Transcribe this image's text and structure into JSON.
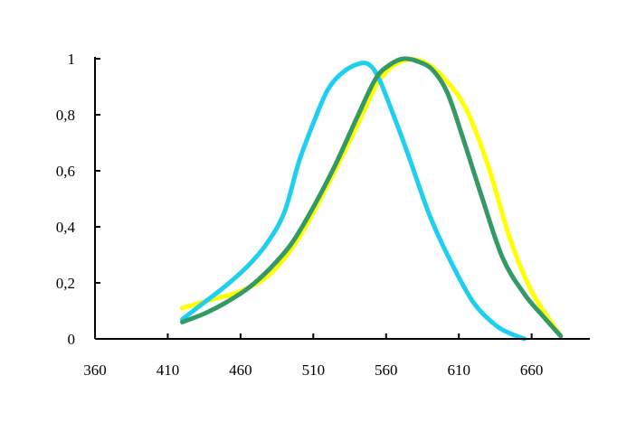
{
  "chart_data": {
    "type": "line",
    "title": "",
    "xlabel": "",
    "ylabel": "",
    "xlim": [
      360,
      700
    ],
    "ylim": [
      0,
      1
    ],
    "grid": false,
    "legend": "none",
    "x_ticks": [
      360,
      410,
      460,
      510,
      560,
      610,
      660
    ],
    "x_tick_labels": [
      "360",
      "410",
      "460",
      "510",
      "560",
      "610",
      "660"
    ],
    "y_ticks": [
      0,
      0.2,
      0.4,
      0.6,
      0.8,
      1
    ],
    "y_tick_labels": [
      "0",
      "0,2",
      "0,4",
      "0,6",
      "0,8",
      "1"
    ],
    "series": [
      {
        "color": "#ffff00",
        "x": [
          420,
          440,
          460,
          480,
          500,
          520,
          540,
          555,
          570,
          585,
          600,
          615,
          630,
          645,
          660,
          680
        ],
        "y": [
          0.11,
          0.14,
          0.17,
          0.23,
          0.36,
          0.55,
          0.76,
          0.92,
          0.99,
          0.99,
          0.93,
          0.82,
          0.62,
          0.36,
          0.17,
          0.01
        ]
      },
      {
        "color": "#1fcfef",
        "x": [
          420,
          435,
          450,
          465,
          478,
          490,
          500,
          510,
          520,
          530,
          540,
          548,
          555,
          565,
          575,
          590,
          605,
          620,
          635,
          645,
          655
        ],
        "y": [
          0.07,
          0.13,
          0.19,
          0.26,
          0.34,
          0.45,
          0.63,
          0.77,
          0.89,
          0.95,
          0.98,
          0.98,
          0.93,
          0.8,
          0.66,
          0.44,
          0.27,
          0.13,
          0.05,
          0.02,
          0.0
        ]
      },
      {
        "color": "#339966",
        "x": [
          420,
          435,
          450,
          465,
          480,
          495,
          510,
          525,
          540,
          553,
          563,
          572,
          582,
          592,
          602,
          612,
          625,
          640,
          655,
          668,
          680
        ],
        "y": [
          0.06,
          0.09,
          0.13,
          0.18,
          0.25,
          0.34,
          0.47,
          0.62,
          0.79,
          0.93,
          0.98,
          1.0,
          0.99,
          0.96,
          0.88,
          0.73,
          0.52,
          0.29,
          0.16,
          0.08,
          0.01
        ]
      }
    ]
  }
}
